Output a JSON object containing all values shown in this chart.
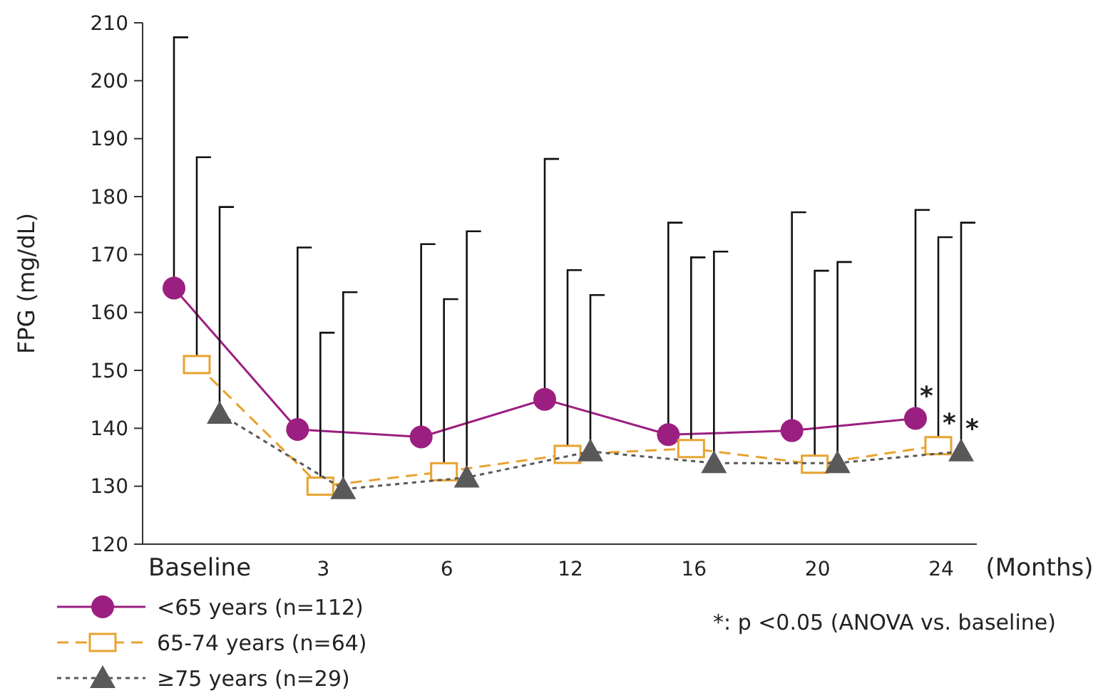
{
  "chart_data": {
    "type": "line",
    "ylabel": "FPG (mg/dL)",
    "xlabel": "(Months)",
    "categories": [
      "Baseline",
      "3",
      "6",
      "12",
      "16",
      "20",
      "24"
    ],
    "ylim": [
      120,
      210
    ],
    "yticks": [
      120,
      130,
      140,
      150,
      160,
      170,
      180,
      190,
      200,
      210
    ],
    "grid": false,
    "legend": "bottom left",
    "series": [
      {
        "name": "<65 years (n=112)",
        "color": "#9b1f80",
        "marker": "circle",
        "line_style": "solid",
        "values": [
          164.2,
          139.8,
          138.5,
          145,
          138.9,
          139.6,
          141.7
        ],
        "errors": [
          [
            164.2,
            207.5
          ],
          [
            139.8,
            171.2
          ],
          [
            138.5,
            171.8
          ],
          [
            145,
            186.5
          ],
          [
            138.9,
            175.5
          ],
          [
            139.6,
            177.3
          ],
          [
            141.7,
            177.7
          ]
        ]
      },
      {
        "name": "65-74 years (n=64)",
        "color": "#e8a331",
        "marker": "square",
        "line_style": "dashed",
        "values": [
          151,
          130,
          132.5,
          135.5,
          136.5,
          133.8,
          137
        ],
        "errors": [
          [
            151,
            186.8
          ],
          [
            130,
            156.5
          ],
          [
            132.5,
            162.3
          ],
          [
            135.5,
            167.3
          ],
          [
            136.5,
            169.5
          ],
          [
            133.8,
            167.2
          ],
          [
            137,
            173
          ]
        ]
      },
      {
        "name": "≥75 years (n=29)",
        "color": "#595959",
        "marker": "triangle",
        "line_style": "dotted",
        "values": [
          142.5,
          129.5,
          131.5,
          136,
          134,
          134,
          136
        ],
        "errors": [
          [
            142.5,
            178.2
          ],
          [
            129.5,
            163.5
          ],
          [
            131.5,
            174
          ],
          [
            136,
            163
          ],
          [
            134,
            170.5
          ],
          [
            134,
            168.7
          ],
          [
            136,
            175.5
          ]
        ]
      }
    ],
    "annotations": [
      {
        "text": "*",
        "x": "24",
        "y": 141.7
      },
      {
        "text": "*",
        "x": "24",
        "y": 137
      },
      {
        "text": "*",
        "x": "24",
        "y": 136
      },
      "*: p <0.05 (ANOVA vs. baseline)"
    ]
  }
}
